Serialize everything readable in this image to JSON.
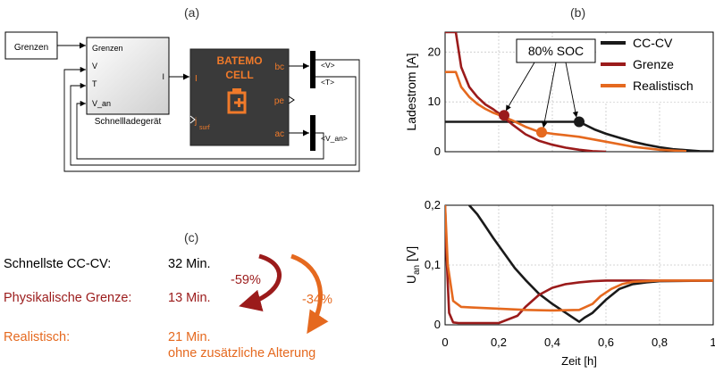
{
  "panel_labels": {
    "a": "(a)",
    "b": "(b)",
    "c": "(c)"
  },
  "simulink": {
    "grenzen_block": "Grenzen",
    "lader_ports_in": [
      "Grenzen",
      "V",
      "T",
      "V_an"
    ],
    "lader_port_out": "I",
    "lader_name": "Schnellladegerät",
    "cell_logo_line1": "BATEMO",
    "cell_logo_line2": "CELL",
    "cell_port_i": "I",
    "cell_port_jsurf": "j",
    "cell_port_jsurf_sub": "surf",
    "cell_port_bc": "bc",
    "cell_port_pe": "pe",
    "cell_port_ac": "ac",
    "bus_v": "<V>",
    "bus_t": "<T>",
    "bus_van": "<V_an>"
  },
  "summary": {
    "rows": [
      {
        "label": "Schnellste CC-CV:",
        "value": "32 Min.",
        "color": "#000000"
      },
      {
        "label": "Physikalische Grenze:",
        "value": "13 Min.",
        "color": "#9b1b1b"
      },
      {
        "label": "Realistisch:",
        "value": "21 Min.",
        "value2": "ohne zusätzliche Alterung",
        "color": "#e5691f"
      }
    ],
    "pct_grenze": "-59%",
    "pct_real": "-34%"
  },
  "colors": {
    "cccv": "#1a1a1a",
    "grenze": "#9b1b1b",
    "realistisch": "#e5691f"
  },
  "chart_data": [
    {
      "type": "line",
      "ylabel": "Ladestrom [A]",
      "xlabel": "",
      "xlim": [
        0,
        1
      ],
      "ylim": [
        0,
        24
      ],
      "yticks": [
        0,
        10,
        20
      ],
      "xticks": [
        0,
        0.2,
        0.4,
        0.6,
        0.8,
        1.0
      ],
      "grid": true,
      "legend": "top-right",
      "annotation": "80% SOC",
      "series": [
        {
          "name": "CC-CV",
          "color": "#1a1a1a",
          "x": [
            0,
            0.5,
            0.53,
            0.56,
            0.6,
            0.65,
            0.7,
            0.75,
            0.8,
            0.85,
            0.9,
            0.95,
            1.0
          ],
          "y": [
            6,
            6,
            5.2,
            4.4,
            3.6,
            2.8,
            2.0,
            1.4,
            0.9,
            0.5,
            0.3,
            0.1,
            0.05
          ]
        },
        {
          "name": "Grenze",
          "color": "#9b1b1b",
          "x": [
            0,
            0.02,
            0.04,
            0.06,
            0.09,
            0.12,
            0.15,
            0.18,
            0.21,
            0.25,
            0.3,
            0.35,
            0.4,
            0.45,
            0.5,
            0.55,
            0.6
          ],
          "y": [
            24,
            24,
            24,
            17,
            13,
            11,
            9.5,
            8.5,
            7.3,
            5.5,
            3.5,
            2.2,
            1.4,
            0.8,
            0.4,
            0.1,
            0
          ]
        },
        {
          "name": "Realistisch",
          "color": "#e5691f",
          "x": [
            0,
            0.04,
            0.06,
            0.09,
            0.12,
            0.15,
            0.18,
            0.21,
            0.25,
            0.3,
            0.35,
            0.4,
            0.45,
            0.5,
            0.6,
            0.7,
            0.8,
            0.9
          ],
          "y": [
            16,
            16,
            13,
            11,
            9.6,
            8.6,
            7.8,
            7.2,
            6.3,
            5.0,
            4.0,
            3.6,
            3.3,
            3.0,
            2.0,
            1.0,
            0.4,
            0.1
          ]
        }
      ],
      "markers": [
        {
          "series": "Grenze",
          "x": 0.22,
          "y": 7.3
        },
        {
          "series": "Realistisch",
          "x": 0.36,
          "y": 3.9
        },
        {
          "series": "CC-CV",
          "x": 0.5,
          "y": 6
        }
      ]
    },
    {
      "type": "line",
      "ylabel": "U",
      "ylabel_sub": "an",
      "ylabel_unit": "[V]",
      "xlabel": "Zeit [h]",
      "xlim": [
        0,
        1
      ],
      "ylim": [
        0,
        0.2
      ],
      "yticks": [
        0,
        0.1,
        0.2
      ],
      "ytick_labels": [
        "0",
        "0,1",
        "0,2"
      ],
      "xticks": [
        0,
        0.2,
        0.4,
        0.6,
        0.8,
        1.0
      ],
      "xtick_labels": [
        "0",
        "0,2",
        "0,4",
        "0,6",
        "0,8",
        "1"
      ],
      "grid": true,
      "series": [
        {
          "name": "CC-CV",
          "color": "#1a1a1a",
          "x": [
            0.09,
            0.12,
            0.15,
            0.18,
            0.22,
            0.26,
            0.3,
            0.35,
            0.4,
            0.45,
            0.5,
            0.52,
            0.55,
            0.6,
            0.65,
            0.7,
            0.75,
            0.8,
            1.0
          ],
          "y": [
            0.2,
            0.185,
            0.165,
            0.145,
            0.12,
            0.095,
            0.075,
            0.052,
            0.035,
            0.02,
            0.005,
            0.012,
            0.02,
            0.042,
            0.06,
            0.068,
            0.071,
            0.073,
            0.074
          ]
        },
        {
          "name": "Grenze",
          "color": "#9b1b1b",
          "x": [
            0,
            0.005,
            0.015,
            0.03,
            0.05,
            0.2,
            0.27,
            0.3,
            0.35,
            0.4,
            0.45,
            0.5,
            0.55,
            0.6,
            1.0
          ],
          "y": [
            0.2,
            0.12,
            0.02,
            0.004,
            0.003,
            0.003,
            0.015,
            0.03,
            0.05,
            0.062,
            0.068,
            0.071,
            0.073,
            0.074,
            0.074
          ]
        },
        {
          "name": "Realistisch",
          "color": "#e5691f",
          "x": [
            0,
            0.01,
            0.03,
            0.06,
            0.1,
            0.2,
            0.3,
            0.4,
            0.5,
            0.55,
            0.58,
            0.62,
            0.66,
            0.7,
            0.8,
            1.0
          ],
          "y": [
            0.2,
            0.1,
            0.04,
            0.03,
            0.029,
            0.027,
            0.025,
            0.024,
            0.025,
            0.035,
            0.048,
            0.06,
            0.068,
            0.072,
            0.074,
            0.074
          ]
        }
      ]
    }
  ]
}
